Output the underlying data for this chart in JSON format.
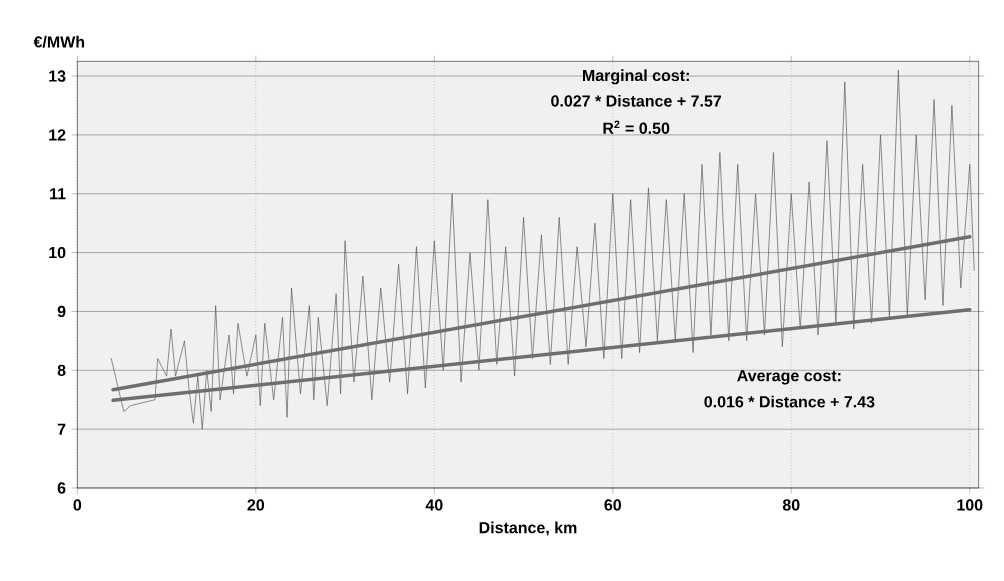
{
  "chart_data": {
    "type": "line",
    "xlabel": "Distance, km",
    "ylabel": "€/MWh",
    "xlim": [
      0,
      101
    ],
    "ylim": [
      6,
      13.25
    ],
    "xticks": [
      0,
      20,
      40,
      60,
      80,
      100
    ],
    "yticks": [
      6,
      7,
      8,
      9,
      10,
      11,
      12,
      13
    ],
    "grid": true,
    "annotations": [
      "Marginal cost:",
      "0.027 * Distance + 7.57",
      "R$^{2}$ = 0.50",
      "Average cost:",
      "0.016 * Distance + 7.43"
    ],
    "series": [
      {
        "color": "#555555",
        "x": [
          3.8,
          5.2,
          6,
          8.7,
          9,
          10,
          10.5,
          11,
          12,
          12.5,
          13,
          13.5,
          14,
          14.5,
          15,
          15.5,
          16,
          17,
          17.5,
          18,
          19,
          20,
          20.5,
          21,
          22,
          23,
          23.5,
          24,
          25,
          26,
          26.5,
          27,
          28,
          29,
          29.5,
          30,
          31,
          32,
          33,
          34,
          35,
          36,
          37,
          38,
          39,
          40,
          41,
          42,
          43,
          44,
          45,
          46,
          47,
          48,
          49,
          50,
          51,
          52,
          53,
          54,
          55,
          56,
          57,
          58,
          59,
          60,
          61,
          62,
          63,
          64,
          65,
          66,
          67,
          68,
          69,
          70,
          71,
          72,
          73,
          74,
          75,
          76,
          77,
          78,
          79,
          80,
          81,
          82,
          83,
          84,
          85,
          86,
          87,
          88,
          89,
          90,
          91,
          92,
          93,
          94,
          95,
          96,
          97,
          98,
          99,
          100,
          100.5
        ],
        "values": [
          8.2,
          7.3,
          7.4,
          7.5,
          8.2,
          7.9,
          8.7,
          7.9,
          8.5,
          7.7,
          7.1,
          7.9,
          7.0,
          8.0,
          7.3,
          9.1,
          7.5,
          8.6,
          7.6,
          8.8,
          7.9,
          8.6,
          7.4,
          8.8,
          7.5,
          8.9,
          7.2,
          9.4,
          7.6,
          9.1,
          7.5,
          8.9,
          7.4,
          9.3,
          7.6,
          10.2,
          7.8,
          9.6,
          7.5,
          9.4,
          7.8,
          9.8,
          7.6,
          10.1,
          7.7,
          10.2,
          8.0,
          11.0,
          7.8,
          10.0,
          8.0,
          10.9,
          8.1,
          10.1,
          7.9,
          10.6,
          8.2,
          10.3,
          8.1,
          10.6,
          8.1,
          10.1,
          8.4,
          10.5,
          8.2,
          11.0,
          8.2,
          10.9,
          8.3,
          11.1,
          8.5,
          10.9,
          8.5,
          11.0,
          8.3,
          11.5,
          8.6,
          11.7,
          8.5,
          11.5,
          8.5,
          11.0,
          8.6,
          11.7,
          8.4,
          11.0,
          8.7,
          11.2,
          8.6,
          11.9,
          8.8,
          12.9,
          8.7,
          11.5,
          8.8,
          12.0,
          8.9,
          13.1,
          8.9,
          12.0,
          9.2,
          12.6,
          9.1,
          12.5,
          9.4,
          11.5,
          9.7
        ]
      },
      {
        "color": "#6e6e6e",
        "x": [
          4,
          100
        ],
        "values": [
          7.67,
          10.27
        ]
      },
      {
        "color": "#6e6e6e",
        "x": [
          4,
          100
        ],
        "values": [
          7.49,
          9.03
        ]
      }
    ]
  }
}
